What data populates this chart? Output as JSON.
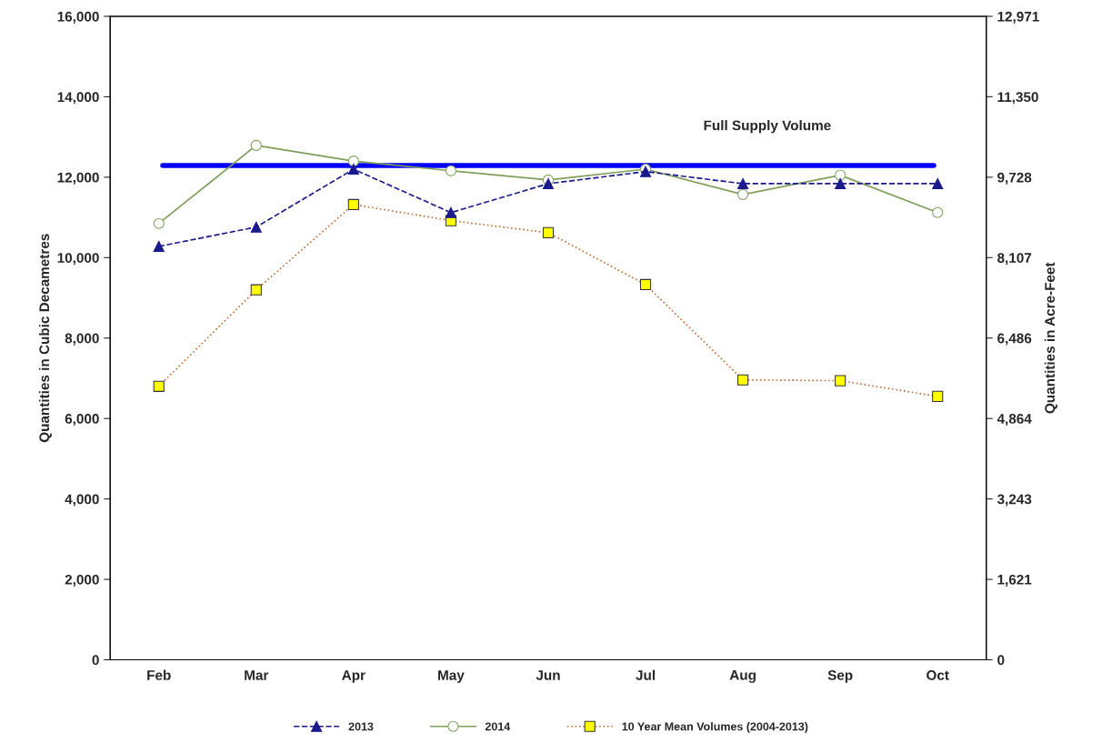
{
  "chart_data": {
    "type": "line",
    "categories": [
      "Feb",
      "Mar",
      "Apr",
      "May",
      "Jun",
      "Jul",
      "Aug",
      "Sep",
      "Oct"
    ],
    "series": [
      {
        "name": "2013",
        "color": "#1a1a8c",
        "marker": "triangle",
        "line_style": "dashed",
        "values": [
          10280,
          10760,
          12200,
          11120,
          11840,
          12140,
          11840,
          11840,
          11840
        ]
      },
      {
        "name": "2014",
        "color": "#7f9f5a",
        "marker": "circle",
        "line_style": "solid",
        "values": [
          10850,
          12790,
          12400,
          12160,
          11930,
          12200,
          11570,
          12050,
          11120
        ]
      },
      {
        "name": "10 Year Mean Volumes (2004-2013)",
        "color": "#c0703a",
        "marker": "square",
        "line_style": "dotted",
        "values": [
          6800,
          9200,
          11320,
          10920,
          10620,
          9330,
          6960,
          6940,
          6550
        ]
      }
    ],
    "ylabel": "Quantities in Cubic Decametres",
    "y2label": "Quantities in Acre-Feet",
    "ylim": [
      0,
      16000
    ],
    "yticks": [
      {
        "value": 0,
        "label": "0"
      },
      {
        "value": 2000,
        "label": "2,000"
      },
      {
        "value": 4000,
        "label": "4,000"
      },
      {
        "value": 6000,
        "label": "6,000"
      },
      {
        "value": 8000,
        "label": "8,000"
      },
      {
        "value": 10000,
        "label": "10,000"
      },
      {
        "value": 12000,
        "label": "12,000"
      },
      {
        "value": 14000,
        "label": "14,000"
      },
      {
        "value": 16000,
        "label": "16,000"
      }
    ],
    "y2lim": [
      0,
      12971
    ],
    "y2ticks": [
      {
        "value": 0,
        "label": "0"
      },
      {
        "value": 1621,
        "label": "1,621"
      },
      {
        "value": 3243,
        "label": "3,243"
      },
      {
        "value": 4864,
        "label": "4,864"
      },
      {
        "value": 6486,
        "label": "6,486"
      },
      {
        "value": 8107,
        "label": "8,107"
      },
      {
        "value": 9728,
        "label": "9,728"
      },
      {
        "value": 11350,
        "label": "11,350"
      },
      {
        "value": 12971,
        "label": "12,971"
      }
    ],
    "ref_lines": [
      {
        "axis": "y",
        "value": 12290,
        "label": "Full Supply Volume",
        "color": "#0000ff",
        "line_style": "solid"
      }
    ],
    "grid": false,
    "legend": "bottom"
  }
}
